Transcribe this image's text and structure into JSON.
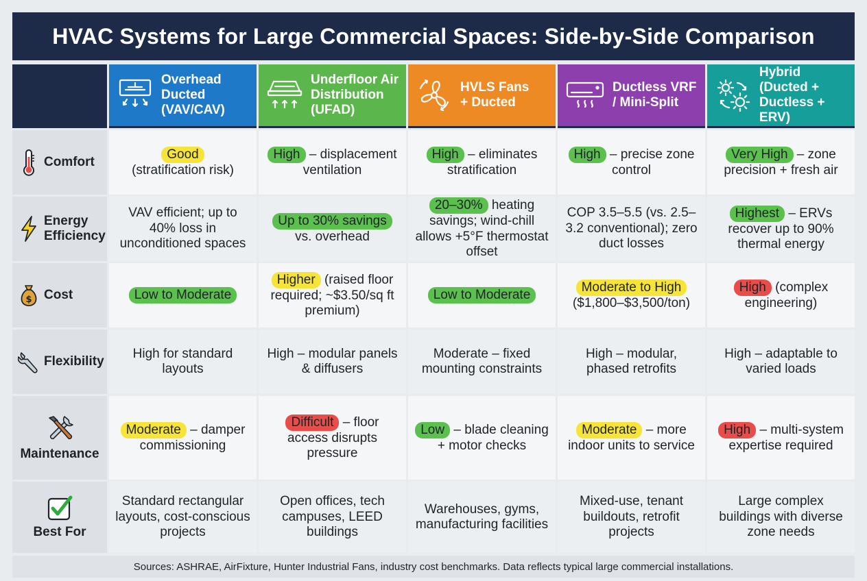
{
  "title": "HVAC Systems for Large Commercial Spaces: Side-by-Side Comparison",
  "colors": {
    "title_bg": "#1d2b48",
    "overhead": "#1e7ac9",
    "ufad": "#5bb74b",
    "hvls": "#ee8a24",
    "vrf": "#8e3fae",
    "hybrid": "#169e9a",
    "highlight_yellow": "#f7e43a",
    "highlight_green": "#5cc04e",
    "highlight_red": "#e84d49"
  },
  "systems": [
    {
      "label": "Overhead\nDucted\n(VAV/CAV)",
      "icon": "ceiling-diffuser-icon"
    },
    {
      "label": "Underfloor Air\nDistribution\n(UFAD)",
      "icon": "floor-diffuser-icon"
    },
    {
      "label": "HVLS Fans\n+ Ducted",
      "icon": "fan-icon"
    },
    {
      "label": "Ductless VRF\n/ Mini-Split",
      "icon": "wall-unit-icon"
    },
    {
      "label": "Hybrid\n(Ducted +\nDuctless + ERV)",
      "icon": "gears-icon"
    }
  ],
  "rows": [
    {
      "label": "Comfort",
      "icon": "thermometer-icon",
      "cells": [
        {
          "hl": "Good",
          "text": "(stratification risk)"
        },
        {
          "hl": "High",
          "text": "– displacement ventilation"
        },
        {
          "hl": "High",
          "text": "– eliminates stratification"
        },
        {
          "hl": "High",
          "text": "– precise zone control"
        },
        {
          "hl": "Very High",
          "text": "– zone precision + fresh air"
        }
      ]
    },
    {
      "label": "Energy\nEfficiency",
      "icon": "lightning-icon",
      "cells": [
        {
          "text": "VAV efficient; up to 40% loss in unconditioned spaces"
        },
        {
          "hl": "Up to 30% savings",
          "text": "vs. overhead"
        },
        {
          "hl": "20–30%",
          "text": "heating savings; wind-chill allows +5°F thermostat offset"
        },
        {
          "text": "COP 3.5–5.5 (vs. 2.5–3.2 conventional); zero duct losses"
        },
        {
          "hl": "Highest",
          "text": "– ERVs recover up to 90% thermal energy"
        }
      ]
    },
    {
      "label": "Cost",
      "icon": "money-bag-icon",
      "cells": [
        {
          "hl": "Low to Moderate",
          "text": ""
        },
        {
          "hl": "Higher",
          "text": "(raised floor required; ~$3.50/sq ft premium)"
        },
        {
          "hl": "Low to Moderate",
          "text": ""
        },
        {
          "hl": "Moderate to High",
          "text": "($1,800–$3,500/ton)"
        },
        {
          "hl": "High",
          "text": "(complex engineering)"
        }
      ]
    },
    {
      "label": "Flexibility",
      "icon": "wrench-icon",
      "cells": [
        {
          "text": "High for standard layouts"
        },
        {
          "text": "High – modular panels & diffusers"
        },
        {
          "text": "Moderate – fixed mounting constraints"
        },
        {
          "text": "High – modular, phased retrofits"
        },
        {
          "text": "High – adaptable to varied loads"
        }
      ]
    },
    {
      "label": "Maintenance",
      "icon": "tools-icon",
      "cells": [
        {
          "hl": "Moderate",
          "text": "– damper commissioning"
        },
        {
          "hl": "Difficult",
          "text": "– floor access disrupts pressure"
        },
        {
          "hl": "Low",
          "text": "– blade cleaning + motor checks"
        },
        {
          "hl": "Moderate",
          "text": "– more indoor units to service"
        },
        {
          "hl": "High",
          "text": "– multi-system expertise required"
        }
      ]
    },
    {
      "label": "Best For",
      "icon": "checkbox-icon",
      "cells": [
        {
          "text": "Standard rectangular layouts, cost-conscious projects"
        },
        {
          "text": "Open offices, tech campuses, LEED buildings"
        },
        {
          "text": "Warehouses, gyms, manufacturing facilities"
        },
        {
          "text": "Mixed-use, tenant buildouts, retrofit projects"
        },
        {
          "text": "Large complex buildings with diverse zone needs"
        }
      ]
    }
  ],
  "footer": "Sources: ASHRAE, AirFixture, Hunter Industrial Fans, industry cost benchmarks. Data reflects typical large commercial installations."
}
